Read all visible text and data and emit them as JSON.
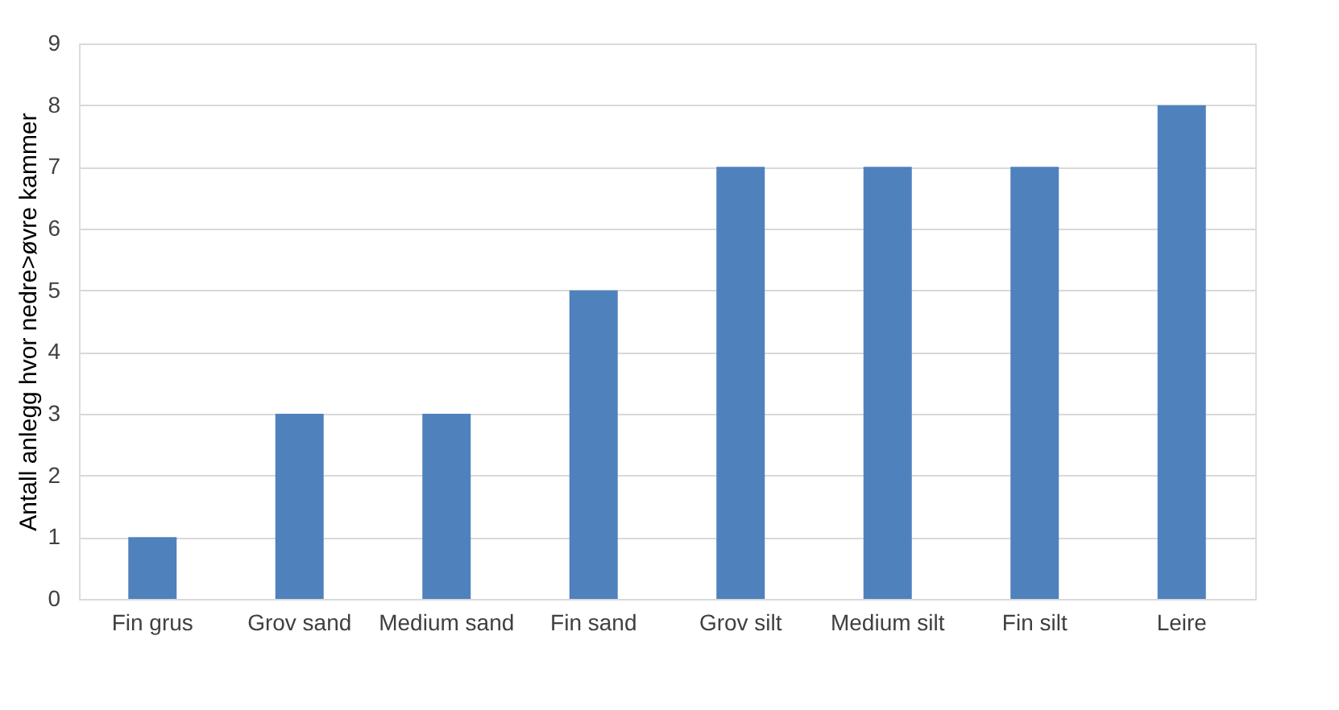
{
  "chart_data": {
    "type": "bar",
    "ylabel": "Antall anlegg hvor nedre>øvre kammer",
    "categories": [
      "Fin grus",
      "Grov sand",
      "Medium sand",
      "Fin sand",
      "Grov silt",
      "Medium silt",
      "Fin silt",
      "Leire"
    ],
    "values": [
      1,
      3,
      3,
      5,
      7,
      7,
      7,
      8
    ],
    "color": "#4f81bd",
    "ylim": [
      0,
      9
    ],
    "yticks": [
      0,
      1,
      2,
      3,
      4,
      5,
      6,
      7,
      8,
      9
    ],
    "grid": "y"
  }
}
